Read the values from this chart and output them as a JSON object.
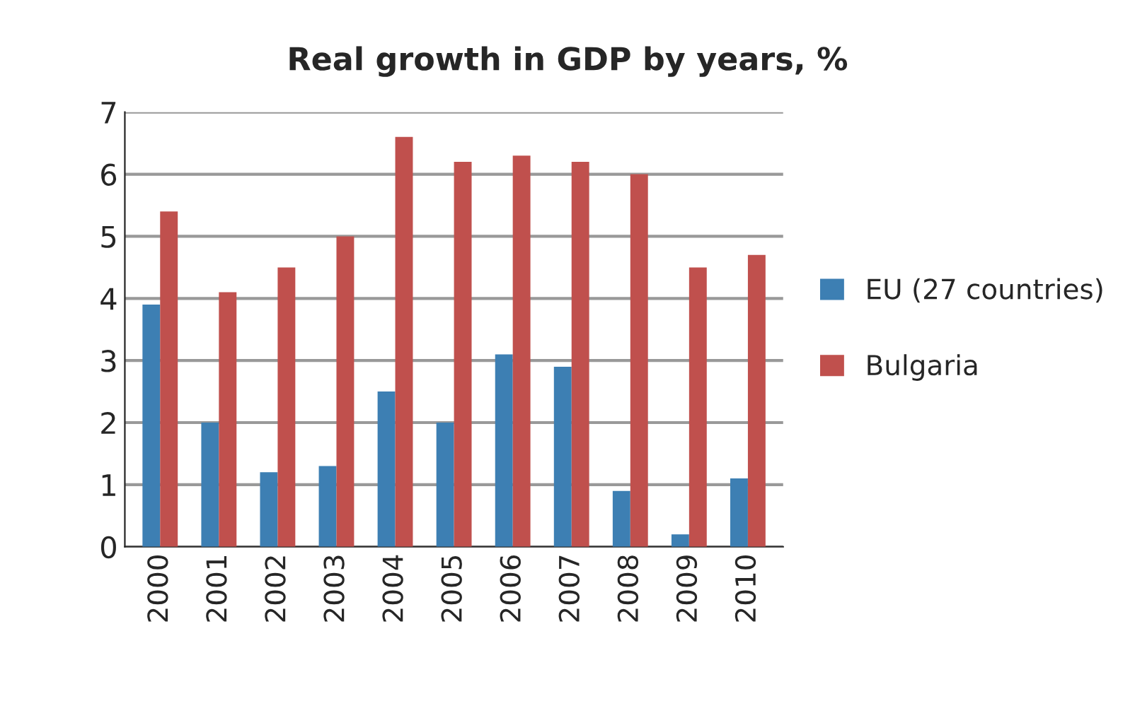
{
  "chart_data": {
    "type": "bar",
    "title": "Real growth in GDP by years, %",
    "categories": [
      "2000",
      "2001",
      "2002",
      "2003",
      "2004",
      "2005",
      "2006",
      "2007",
      "2008",
      "2009",
      "2010"
    ],
    "series": [
      {
        "name": "EU (27 countries)",
        "color": "#3d7fb3",
        "values": [
          3.9,
          2.0,
          1.2,
          1.3,
          2.5,
          2.0,
          3.1,
          2.9,
          0.9,
          0.2,
          1.1
        ]
      },
      {
        "name": "Bulgaria",
        "color": "#c0504d",
        "values": [
          5.4,
          4.1,
          4.5,
          5.0,
          6.6,
          6.2,
          6.3,
          6.2,
          6.0,
          4.5,
          4.7
        ]
      }
    ],
    "ylim": [
      0,
      7
    ],
    "yticks": [
      0,
      1,
      2,
      3,
      4,
      5,
      6,
      7
    ],
    "grid": "y",
    "legend": "right"
  }
}
